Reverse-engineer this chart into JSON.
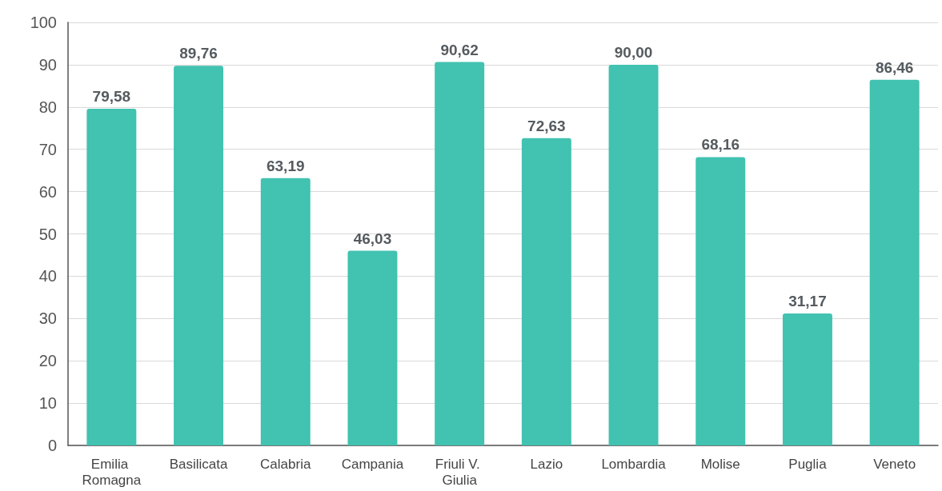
{
  "chart_data": {
    "type": "bar",
    "categories": [
      "Emilia Romagna",
      "Basilicata",
      "Calabria",
      "Campania",
      "Friuli V. Giulia",
      "Lazio",
      "Lombardia",
      "Molise",
      "Puglia",
      "Veneto"
    ],
    "values": [
      79.58,
      89.76,
      63.19,
      46.03,
      90.62,
      72.63,
      90.0,
      68.16,
      31.17,
      86.46
    ],
    "value_labels": [
      "79,58",
      "89,76",
      "63,19",
      "46,03",
      "90,62",
      "72,63",
      "90,00",
      "68,16",
      "31,17",
      "86,46"
    ],
    "color": "#42c2b1",
    "ylim": [
      0,
      100
    ],
    "yticks": [
      0,
      10,
      20,
      30,
      40,
      50,
      60,
      70,
      80,
      90,
      100
    ],
    "grid": "y"
  }
}
